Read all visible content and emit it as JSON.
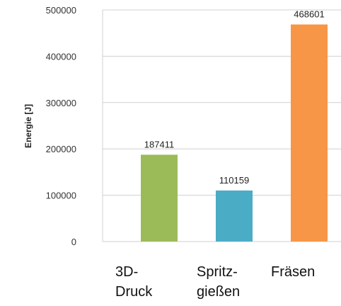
{
  "chart_data": {
    "type": "bar",
    "categories": [
      [
        "3D-",
        "Druck"
      ],
      [
        "Spritz-",
        "gießen"
      ],
      [
        "Fräsen"
      ]
    ],
    "values": [
      187411,
      110159,
      468601
    ],
    "data_labels": [
      "187411",
      "110159",
      "468601"
    ],
    "ylabel": "Energie  [J]",
    "ylim": [
      0,
      500000
    ],
    "yticks": [
      0,
      100000,
      200000,
      300000,
      400000,
      500000
    ],
    "ytick_labels": [
      "0",
      "100000",
      "200000",
      "300000",
      "400000",
      "500000"
    ],
    "grid": true,
    "colors": [
      "#9BBB59",
      "#4BACC6",
      "#F79646"
    ]
  }
}
